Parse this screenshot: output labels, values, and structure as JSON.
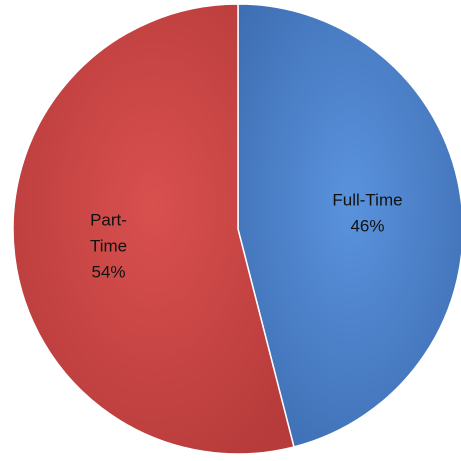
{
  "chart_data": {
    "type": "pie",
    "start_angle_deg": 0,
    "direction": "clockwise",
    "slices": [
      {
        "label_lines": [
          "Full-Time"
        ],
        "value_label": "46%",
        "value": 46,
        "color": "#4A7EC8"
      },
      {
        "label_lines": [
          "Part-",
          "Time"
        ],
        "value_label": "54%",
        "value": 54,
        "color": "#C94443"
      }
    ]
  }
}
